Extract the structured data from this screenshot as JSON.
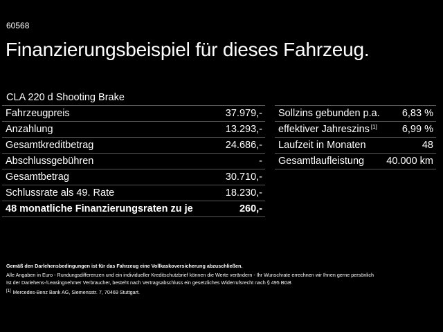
{
  "code": "60568",
  "headline": "Finanzierungsbeispiel für dieses Fahrzeug.",
  "model": "CLA 220 d Shooting Brake",
  "left_table": [
    {
      "label": "Fahrzeugpreis",
      "value": "37.979,-"
    },
    {
      "label": "Anzahlung",
      "value": "13.293,-"
    },
    {
      "label": "Gesamtkreditbetrag",
      "value": "24.686,-"
    },
    {
      "label": "Abschlussgebühren",
      "value": "-"
    },
    {
      "label": "Gesamtbetrag",
      "value": "30.710,-"
    },
    {
      "label": "Schlussrate als 49. Rate",
      "value": "18.230,-"
    },
    {
      "label": "48 monatliche Finanzierungsraten zu je",
      "value": "260,-"
    }
  ],
  "right_table": [
    {
      "label": "Sollzins gebunden p.a.",
      "value": "6,83 %"
    },
    {
      "label": "effektiver Jahreszins",
      "sup": "[1]",
      "value": "6,99 %"
    },
    {
      "label": "Laufzeit in Monaten",
      "value": "48"
    },
    {
      "label": "Gesamtlaufleistung",
      "value": "40.000 km"
    }
  ],
  "notes": {
    "bold_line": "Gemäß den Darlehensbedingungen ist für das Fahrzeug eine Vollkaskoversicherung abzuschließen.",
    "line1": "Alle Angaben in Euro - Rundungsdifferenzen und ein individueller Kreditschutzbrief können die Werte verändern - Ihr Wunschrate errechnen wir Ihnen gerne persönlich",
    "line2": "Ist der Darlehens-/Leasingnehmer Verbraucher, besteht nach Vertragsabschluss ein gesetzliches Widerrufsrecht nach § 495 BGB",
    "footnote_marker": "[1]",
    "footnote_text": "Mercedes-Benz Bank AG, Siemensstr. 7, 70469 Stuttgart."
  }
}
